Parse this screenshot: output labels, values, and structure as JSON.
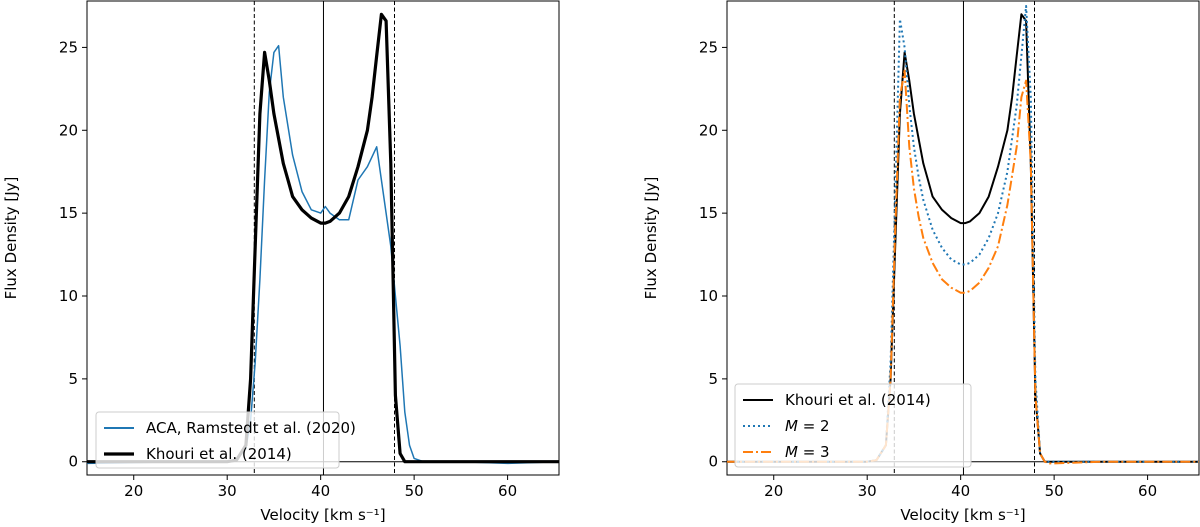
{
  "chart_data": [
    {
      "type": "line",
      "xlabel": "Velocity [km s⁻¹]",
      "ylabel": "Flux Density [Jy]",
      "xlim": [
        15,
        65.5
      ],
      "ylim": [
        -0.8,
        27.8
      ],
      "xticks": [
        20,
        30,
        40,
        50,
        60
      ],
      "yticks": [
        0,
        5,
        10,
        15,
        20,
        25
      ],
      "grid": false,
      "legend_position": "lower-left",
      "vlines": [
        {
          "x": 32.9,
          "style": "dashed"
        },
        {
          "x": 40.3,
          "style": "solid"
        },
        {
          "x": 47.9,
          "style": "dashed"
        }
      ],
      "hline": {
        "y": 0
      },
      "series": [
        {
          "name": "ACA, Ramstedt et al. (2020)",
          "color": "#1f77b4",
          "style": "solid",
          "x": [
            15,
            20,
            25,
            30,
            31,
            32,
            32.5,
            33,
            33.5,
            34,
            34.5,
            35,
            35.5,
            36,
            37,
            38,
            39,
            40,
            40.5,
            41,
            42,
            43,
            44,
            45,
            46,
            46.5,
            47,
            47.5,
            48,
            48.5,
            49,
            49.5,
            50,
            51,
            55,
            60,
            65.5
          ],
          "y": [
            -0.1,
            -0.05,
            0,
            0,
            0.1,
            0.8,
            2.5,
            6,
            11,
            17,
            22.3,
            24.7,
            25.1,
            22,
            18.5,
            16.3,
            15.2,
            15,
            15.4,
            15,
            14.6,
            14.6,
            17,
            17.8,
            19,
            17,
            15,
            13,
            10,
            7,
            3,
            1,
            0.2,
            0,
            0,
            -0.1,
            0
          ]
        },
        {
          "name": "Khouri et al. (2014)",
          "color": "#000000",
          "style": "solid",
          "x": [
            15,
            20,
            25,
            30,
            31,
            32,
            32.5,
            33,
            33.5,
            34,
            34.5,
            35,
            35.5,
            36,
            36.5,
            37,
            38,
            39,
            40,
            40.5,
            41,
            42,
            43,
            44,
            45,
            45.5,
            46,
            46.5,
            47,
            47.5,
            48,
            48.5,
            49,
            50,
            55,
            60,
            65.5
          ],
          "y": [
            0,
            0,
            0,
            0,
            0.1,
            1,
            5,
            13,
            21,
            24.7,
            23,
            21,
            19.5,
            18,
            17,
            16,
            15.2,
            14.7,
            14.4,
            14.4,
            14.5,
            15,
            16,
            17.8,
            20,
            22,
            24.5,
            27,
            26.6,
            18,
            4,
            0.5,
            0,
            0,
            0,
            0,
            0
          ]
        }
      ]
    },
    {
      "type": "line",
      "xlabel": "Velocity [km s⁻¹]",
      "ylabel": "Flux Density [Jy]",
      "xlim": [
        15,
        65.5
      ],
      "ylim": [
        -0.8,
        27.8
      ],
      "xticks": [
        20,
        30,
        40,
        50,
        60
      ],
      "yticks": [
        0,
        5,
        10,
        15,
        20,
        25
      ],
      "grid": false,
      "legend_position": "lower-left",
      "vlines": [
        {
          "x": 32.9,
          "style": "dashed"
        },
        {
          "x": 40.3,
          "style": "solid"
        },
        {
          "x": 47.9,
          "style": "dashed"
        }
      ],
      "hline": {
        "y": 0
      },
      "series": [
        {
          "name": "Khouri et al. (2014)",
          "color": "#000000",
          "style": "solid",
          "x": [
            15,
            20,
            25,
            30,
            31,
            32,
            32.5,
            33,
            33.5,
            34,
            34.5,
            35,
            35.5,
            36,
            36.5,
            37,
            38,
            39,
            40,
            40.5,
            41,
            42,
            43,
            44,
            45,
            45.5,
            46,
            46.5,
            47,
            47.5,
            48,
            48.5,
            49,
            50,
            55,
            60,
            65.5
          ],
          "y": [
            0,
            0,
            0,
            0,
            0.1,
            1,
            5,
            13,
            21,
            24.7,
            23,
            21,
            19.5,
            18,
            17,
            16,
            15.2,
            14.7,
            14.4,
            14.4,
            14.5,
            15,
            16,
            17.8,
            20,
            22,
            24.5,
            27,
            26.6,
            18,
            4,
            0.5,
            0,
            0,
            0,
            0,
            0
          ]
        },
        {
          "name": "M = 2",
          "color": "#1f77b4",
          "style": "dotted",
          "x": [
            15,
            20,
            25,
            30,
            31,
            32,
            32.5,
            33,
            33.5,
            34,
            34.5,
            35,
            35.5,
            36,
            37,
            38,
            39,
            40,
            40.5,
            41,
            42,
            43,
            44,
            45,
            46,
            46.5,
            47,
            47.5,
            48,
            48.5,
            49,
            50,
            55,
            60,
            65.5
          ],
          "y": [
            0,
            0,
            0,
            0,
            0.1,
            1,
            6,
            16,
            26.7,
            25,
            21.5,
            19,
            17.2,
            15.8,
            14,
            12.9,
            12.2,
            11.9,
            11.9,
            12,
            12.5,
            13.5,
            15,
            17.5,
            21.5,
            24.5,
            27.5,
            22,
            5,
            0.5,
            0,
            0,
            0,
            0,
            0
          ]
        },
        {
          "name": "M = 3",
          "color": "#ff7f0e",
          "style": "dashdot",
          "x": [
            15,
            20,
            25,
            30,
            31,
            32,
            32.5,
            33,
            33.5,
            34,
            34.5,
            35,
            35.5,
            36,
            37,
            38,
            39,
            40,
            40.5,
            41,
            42,
            43,
            44,
            45,
            46,
            46.5,
            47,
            47.5,
            48,
            48.5,
            49,
            49.5,
            50,
            55,
            60,
            65.5
          ],
          "y": [
            0,
            0,
            0,
            0,
            0.1,
            1,
            5,
            14,
            22,
            23.6,
            19,
            16.5,
            14.8,
            13.5,
            12,
            11,
            10.5,
            10.2,
            10.2,
            10.3,
            10.8,
            11.7,
            13,
            15.5,
            19,
            22,
            23,
            18,
            4,
            0.5,
            0,
            -0.1,
            -0.1,
            0,
            0,
            0
          ]
        }
      ]
    }
  ]
}
